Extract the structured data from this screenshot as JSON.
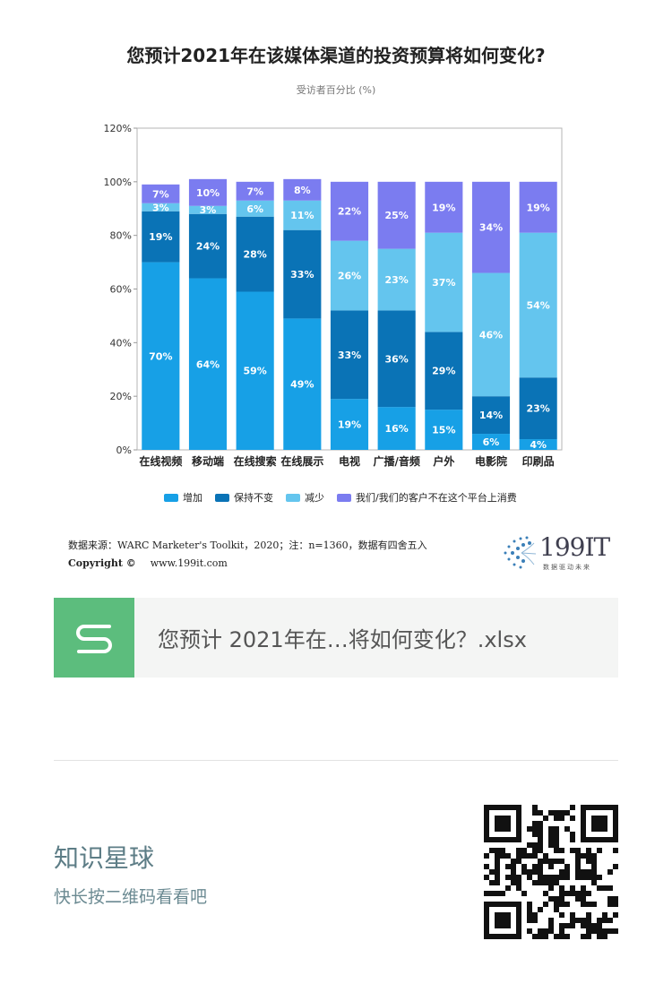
{
  "title": "您预计2021年在该媒体渠道的投资预算将如何变化?",
  "subtitle": "受访者百分比 (%)",
  "colors": {
    "increase": "#17a0e6",
    "maintain": "#0a73b6",
    "decrease": "#64c5ee",
    "none": "#7b7cf0",
    "axis": "#999999",
    "grid": "#e5e5e5",
    "card_icon": "#5cbd7d"
  },
  "chart_data": {
    "type": "bar",
    "stacked": true,
    "categories": [
      "在线视频",
      "移动端",
      "在线搜索",
      "在线展示",
      "电视",
      "广播/音频",
      "户外",
      "电影院",
      "印刷品"
    ],
    "series": [
      {
        "name": "增加",
        "values": [
          70,
          64,
          59,
          49,
          19,
          16,
          15,
          6,
          4
        ]
      },
      {
        "name": "保持不变",
        "values": [
          19,
          24,
          28,
          33,
          33,
          36,
          29,
          14,
          23
        ]
      },
      {
        "name": "减少",
        "values": [
          3,
          3,
          6,
          11,
          26,
          23,
          37,
          46,
          54
        ]
      },
      {
        "name": "我们/我们的客户不在这个平台上消费",
        "values": [
          7,
          10,
          7,
          8,
          22,
          25,
          19,
          34,
          19
        ]
      }
    ],
    "ylim": [
      0,
      120
    ],
    "yticks": [
      "0%",
      "20%",
      "40%",
      "60%",
      "80%",
      "100%",
      "120%"
    ],
    "ytick_values": [
      0,
      20,
      40,
      60,
      80,
      100,
      120
    ],
    "legend_position": "bottom",
    "grid": false
  },
  "legend": [
    "增加",
    "保持不变",
    "减少",
    "我们/我们的客户不在这个平台上消费"
  ],
  "source_note": "数据来源：WARC Marketer's Toolkit，2020；注：n=1360，数据有四舍五入",
  "copyright_label": "Copyright ©",
  "copyright_url": "www.199it.com",
  "logo_text": "199IT",
  "logo_tagline": "数据驱动未来",
  "file_card": {
    "name": "您预计 2021年在…将如何变化？.xlsx",
    "icon": "document-s-icon"
  },
  "footer": {
    "title": "知识星球",
    "subtitle": "快长按二维码看看吧",
    "qr_icon": "qr-code-icon"
  }
}
